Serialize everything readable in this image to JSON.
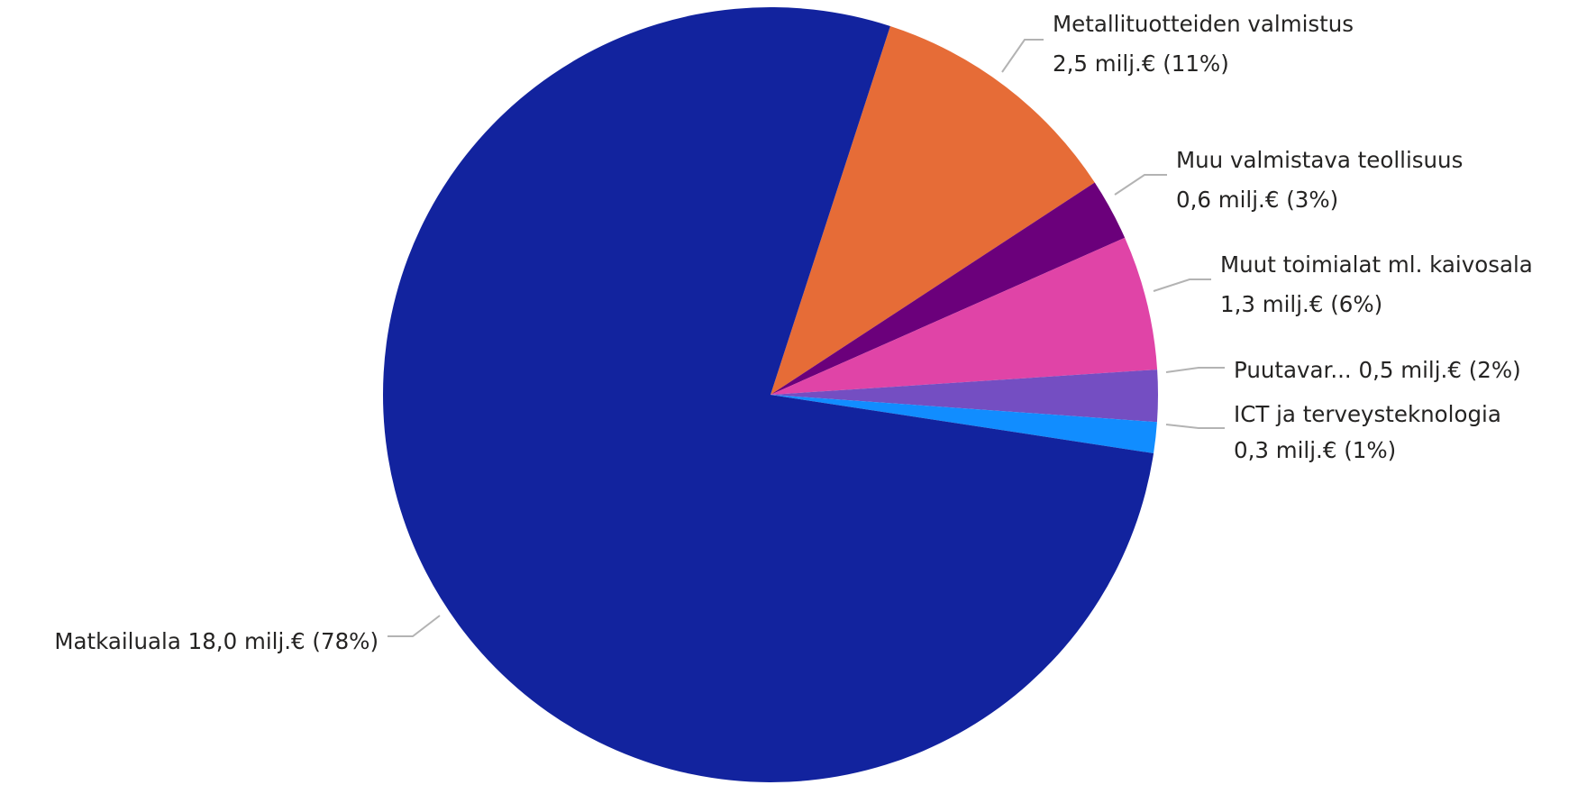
{
  "chart_data": {
    "type": "pie",
    "unit": "milj.€",
    "slices": [
      {
        "label": "Metallituotteiden valmistus",
        "value": 2.5,
        "value_label": "2,5 milj.€",
        "percent": 11,
        "percent_label": "(11%)",
        "color": "#E66C37"
      },
      {
        "label": "Muu valmistava teollisuus",
        "value": 0.6,
        "value_label": "0,6 milj.€",
        "percent": 3,
        "percent_label": "(3%)",
        "color": "#6B007B"
      },
      {
        "label": "Muut toimialat ml. kaivosala",
        "value": 1.3,
        "value_label": "1,3 milj.€",
        "percent": 6,
        "percent_label": "(6%)",
        "color": "#E044A7"
      },
      {
        "label": "Puutavar...",
        "value": 0.5,
        "value_label": "0,5 milj.€",
        "percent": 2,
        "percent_label": "(2%)",
        "color": "#744EC2"
      },
      {
        "label": "ICT ja terveysteknologia",
        "value": 0.3,
        "value_label": "0,3 milj.€",
        "percent": 1,
        "percent_label": "(1%)",
        "color": "#118DFF"
      },
      {
        "label": "Matkailuala",
        "value": 18.0,
        "value_label": "18,0 milj.€",
        "percent": 78,
        "percent_label": "(78%)",
        "color": "#12239E"
      }
    ]
  }
}
